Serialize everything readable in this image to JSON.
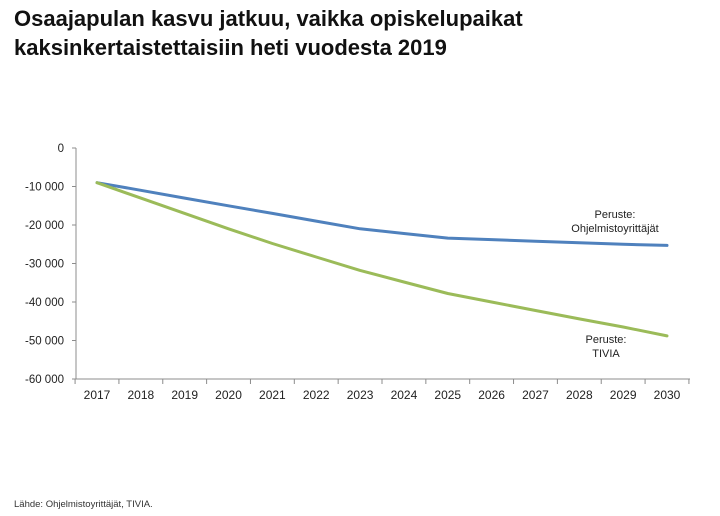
{
  "title_lines": [
    "Osaajapulan kasvu jatkuu, vaikka opiskelupaikat",
    "kaksinkertaistettaisiin heti vuodesta 2019"
  ],
  "source": "Lähde: Ohjelmistoyrittäjät,  TIVIA.",
  "chart_data": {
    "type": "line",
    "x": [
      2017,
      2018,
      2019,
      2020,
      2021,
      2022,
      2023,
      2024,
      2025,
      2026,
      2027,
      2028,
      2029,
      2030
    ],
    "x_tick_labels": [
      "2017",
      "2018",
      "2019",
      "2020",
      "2021",
      "2022",
      "2023",
      "2024",
      "2025",
      "2026",
      "2027",
      "2028",
      "2029",
      "2030"
    ],
    "ylim": [
      -60000,
      0
    ],
    "y_ticks": [
      0,
      -10000,
      -20000,
      -30000,
      -40000,
      -50000,
      -60000
    ],
    "y_tick_labels": [
      "0",
      "-10 000",
      "-20 000",
      "-30 000",
      "-40 000",
      "-50 000",
      "-60 000"
    ],
    "grid": false,
    "series": [
      {
        "label_lines": [
          "Peruste:",
          "Ohjelmistoyrittäjät"
        ],
        "color": "#4f81bd",
        "values": [
          -9000,
          -11000,
          -13000,
          -15000,
          -17000,
          -19000,
          -21000,
          -22200,
          -23400,
          -23800,
          -24200,
          -24600,
          -25000,
          -25300
        ]
      },
      {
        "label_lines": [
          "Peruste:",
          "TIVIA"
        ],
        "color": "#9bbb59",
        "values": [
          -9000,
          -13000,
          -17000,
          -21000,
          -24800,
          -28300,
          -31800,
          -34800,
          -37800,
          -40000,
          -42200,
          -44400,
          -46500,
          -48800
        ]
      }
    ]
  }
}
